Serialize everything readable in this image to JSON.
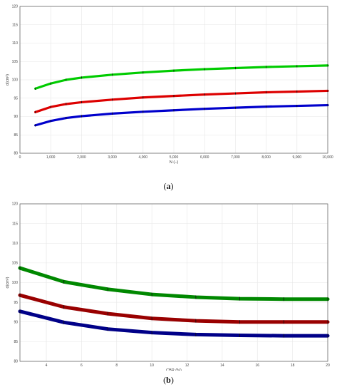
{
  "chart_data": [
    {
      "type": "line",
      "caption": {
        "open": "(",
        "letter": "a",
        "close": ")"
      },
      "xlabel": "N (−)",
      "ylabel": "d(cm²)",
      "xlim": [
        0,
        10000
      ],
      "ylim": [
        80,
        120
      ],
      "xticks": [
        0,
        1000,
        2000,
        3000,
        4000,
        5000,
        6000,
        7000,
        8000,
        9000,
        10000
      ],
      "xtick_labels": [
        "0",
        "1,000",
        "2,000",
        "3,000",
        "4,000",
        "5,000",
        "6,000",
        "7,000",
        "8,000",
        "9,000",
        "10,000"
      ],
      "yticks": [
        80,
        85,
        90,
        95,
        100,
        105,
        110,
        115,
        120
      ],
      "ytick_labels": [
        "80",
        "85",
        "90",
        "95",
        "100",
        "105",
        "110",
        "115",
        "120"
      ],
      "grid": true,
      "x": [
        500,
        1000,
        1500,
        2000,
        3000,
        4000,
        5000,
        6000,
        7000,
        8000,
        9000,
        10000
      ],
      "series": [
        {
          "color": "#00cc00",
          "values": [
            97.6,
            99.0,
            100.0,
            100.6,
            101.4,
            102.0,
            102.5,
            102.9,
            103.2,
            103.5,
            103.7,
            103.9
          ]
        },
        {
          "color": "#dd0000",
          "values": [
            91.2,
            92.6,
            93.4,
            93.9,
            94.6,
            95.2,
            95.6,
            96.0,
            96.3,
            96.6,
            96.8,
            97.0
          ]
        },
        {
          "color": "#0000cc",
          "values": [
            87.6,
            88.8,
            89.6,
            90.1,
            90.8,
            91.3,
            91.7,
            92.1,
            92.4,
            92.7,
            92.9,
            93.1
          ]
        }
      ]
    },
    {
      "type": "line",
      "caption": {
        "open": "(",
        "letter": "b",
        "close": ")"
      },
      "xlabel": "CBR (%)",
      "ylabel": "d(cm²)",
      "xlim": [
        2.5,
        20
      ],
      "ylim": [
        80,
        120
      ],
      "xticks": [
        4,
        6,
        8,
        10,
        12,
        14,
        16,
        18,
        20
      ],
      "xtick_labels": [
        "4",
        "6",
        "8",
        "10",
        "12",
        "14",
        "16",
        "18",
        "20"
      ],
      "yticks": [
        80,
        85,
        90,
        95,
        100,
        105,
        110,
        115,
        120
      ],
      "ytick_labels": [
        "80",
        "85",
        "90",
        "95",
        "100",
        "105",
        "110",
        "115",
        "120"
      ],
      "grid": true,
      "x": [
        2.5,
        5,
        7.5,
        10,
        12.5,
        15,
        17.5,
        20
      ],
      "series": [
        {
          "color": "#008800",
          "values": [
            103.7,
            100.2,
            98.3,
            97.0,
            96.3,
            95.9,
            95.8,
            95.8
          ]
        },
        {
          "color": "#990000",
          "values": [
            96.8,
            93.8,
            92.1,
            90.9,
            90.3,
            90.0,
            90.0,
            90.0
          ]
        },
        {
          "color": "#000088",
          "values": [
            92.7,
            89.9,
            88.2,
            87.3,
            86.8,
            86.6,
            86.5,
            86.5
          ]
        }
      ]
    }
  ]
}
